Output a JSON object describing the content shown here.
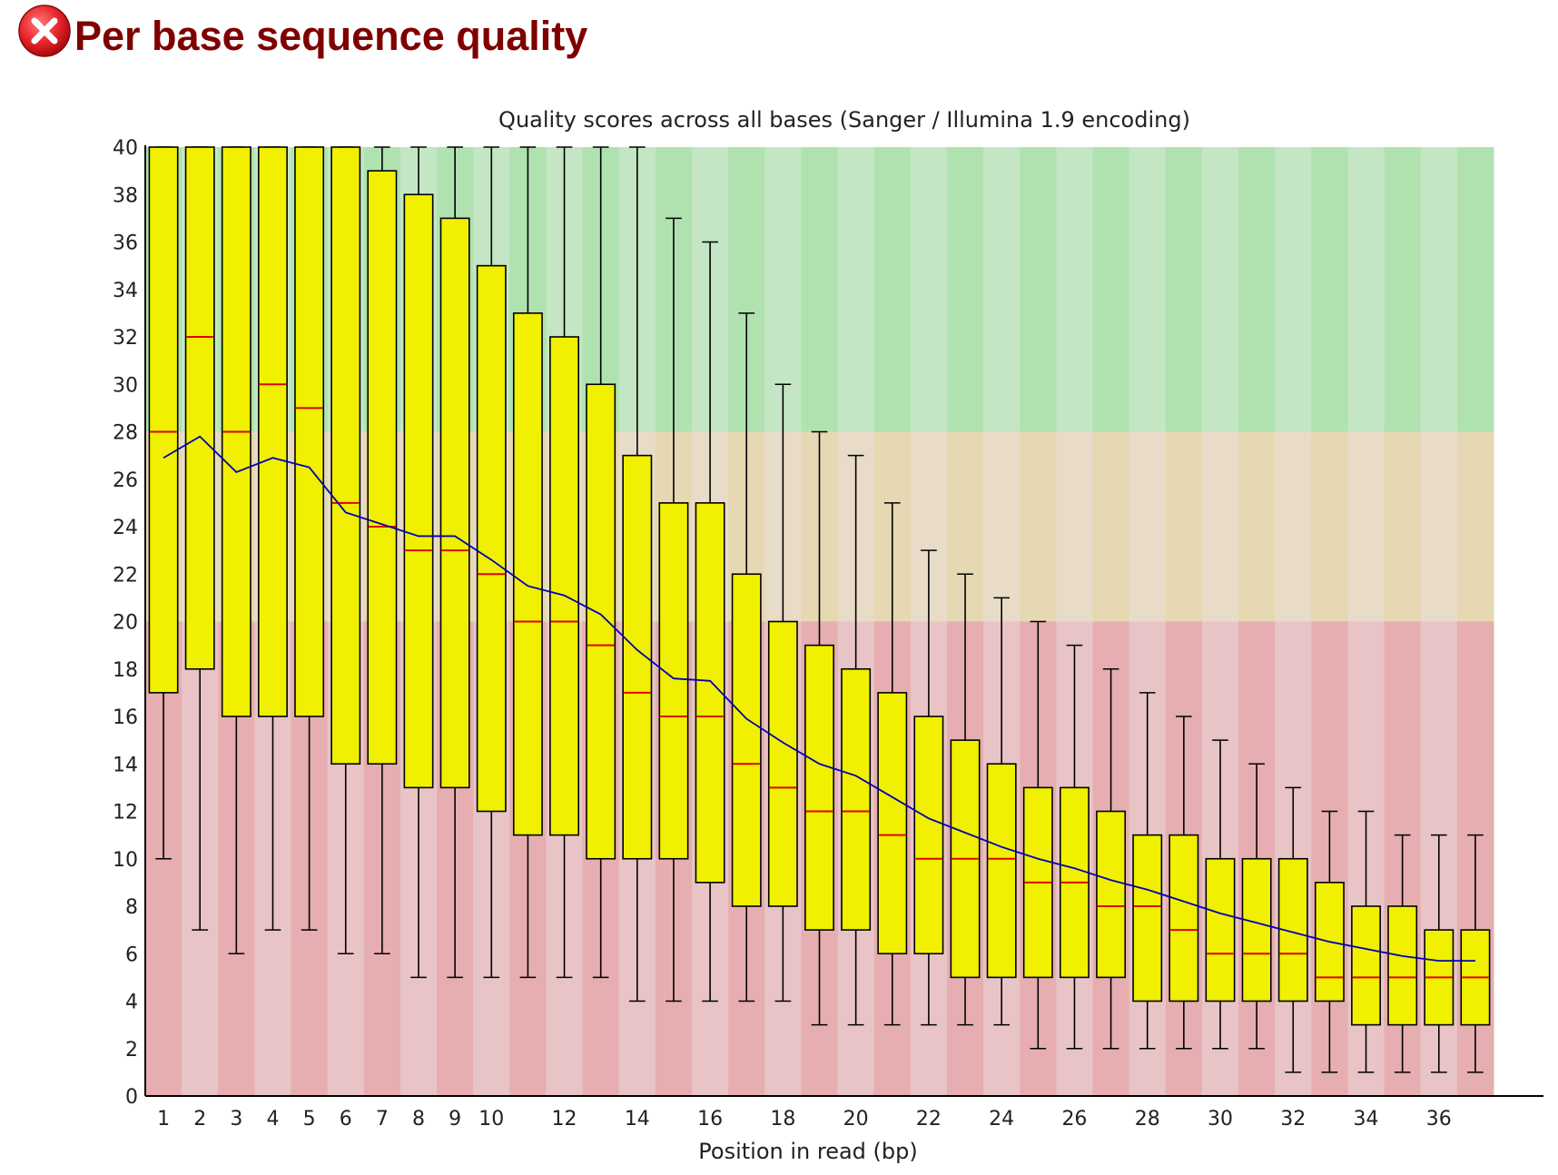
{
  "header": {
    "status_icon": "error-icon",
    "status_color": "#e8252a",
    "title": "Per base sequence quality"
  },
  "chart_data": {
    "type": "boxplot",
    "title": "Quality scores across all bases (Sanger / Illumina 1.9 encoding)",
    "xlabel": "Position in read (bp)",
    "ylabel": "",
    "ylim": [
      0,
      40
    ],
    "yticks": [
      0,
      2,
      4,
      6,
      8,
      10,
      12,
      14,
      16,
      18,
      20,
      22,
      24,
      26,
      28,
      30,
      32,
      34,
      36,
      38,
      40
    ],
    "xtick_labels": [
      "1",
      "2",
      "3",
      "4",
      "5",
      "6",
      "7",
      "8",
      "9",
      "10",
      "12",
      "14",
      "16",
      "18",
      "20",
      "22",
      "24",
      "26",
      "28",
      "30",
      "32",
      "34",
      "36"
    ],
    "xtick_positions": [
      1,
      2,
      3,
      4,
      5,
      6,
      7,
      8,
      9,
      10,
      12,
      14,
      16,
      18,
      20,
      22,
      24,
      26,
      28,
      30,
      32,
      34,
      36
    ],
    "bands": [
      {
        "from": 28,
        "to": 40,
        "colors": [
          "#b0e2b0",
          "#c4e6c4"
        ]
      },
      {
        "from": 20,
        "to": 28,
        "colors": [
          "#e6d8b2",
          "#e8dcc8"
        ]
      },
      {
        "from": 0,
        "to": 20,
        "colors": [
          "#e6aeb0",
          "#e8c4c6"
        ]
      }
    ],
    "colors": {
      "box": "#f0f000",
      "median": "#e00000",
      "mean": "#0000b0",
      "whisker": "#000000"
    },
    "positions": [
      1,
      2,
      3,
      4,
      5,
      6,
      7,
      8,
      9,
      10,
      11,
      12,
      13,
      14,
      15,
      16,
      17,
      18,
      19,
      20,
      21,
      22,
      23,
      24,
      25,
      26,
      27,
      28,
      29,
      30,
      31,
      32,
      33,
      34,
      35,
      36,
      37
    ],
    "series": [
      {
        "name": "box",
        "whisker_low": [
          10,
          7,
          6,
          7,
          7,
          6,
          6,
          5,
          5,
          5,
          5,
          5,
          5,
          4,
          4,
          4,
          4,
          4,
          3,
          3,
          3,
          3,
          3,
          3,
          2,
          2,
          2,
          2,
          2,
          2,
          2,
          1,
          1,
          1,
          1,
          1,
          1
        ],
        "q1": [
          17,
          18,
          16,
          16,
          16,
          14,
          14,
          13,
          13,
          12,
          11,
          11,
          10,
          10,
          10,
          9,
          8,
          8,
          7,
          7,
          6,
          6,
          5,
          5,
          5,
          5,
          5,
          4,
          4,
          4,
          4,
          4,
          4,
          3,
          3,
          3,
          3
        ],
        "median": [
          28,
          32,
          28,
          30,
          29,
          25,
          24,
          23,
          23,
          22,
          20,
          20,
          19,
          17,
          16,
          16,
          14,
          13,
          12,
          12,
          11,
          10,
          10,
          10,
          9,
          9,
          8,
          8,
          7,
          6,
          6,
          6,
          5,
          5,
          5,
          5,
          5
        ],
        "q3": [
          40,
          40,
          40,
          40,
          40,
          40,
          39,
          38,
          37,
          35,
          33,
          32,
          30,
          27,
          25,
          25,
          22,
          20,
          19,
          18,
          17,
          16,
          15,
          14,
          13,
          13,
          12,
          11,
          11,
          10,
          10,
          10,
          9,
          8,
          8,
          7,
          7
        ],
        "whisker_high": [
          40,
          40,
          40,
          40,
          40,
          40,
          40,
          40,
          40,
          40,
          40,
          40,
          40,
          40,
          37,
          36,
          33,
          30,
          28,
          27,
          25,
          23,
          22,
          21,
          20,
          19,
          18,
          17,
          16,
          15,
          14,
          13,
          12,
          12,
          11,
          11,
          11
        ]
      },
      {
        "name": "mean",
        "values": [
          26.9,
          27.8,
          26.3,
          26.9,
          26.5,
          24.6,
          24.1,
          23.6,
          23.6,
          22.6,
          21.5,
          21.1,
          20.3,
          18.8,
          17.6,
          17.5,
          15.9,
          14.9,
          14.0,
          13.5,
          12.6,
          11.7,
          11.1,
          10.5,
          10.0,
          9.6,
          9.1,
          8.7,
          8.2,
          7.7,
          7.3,
          6.9,
          6.5,
          6.2,
          5.9,
          5.7,
          5.7
        ]
      }
    ]
  }
}
